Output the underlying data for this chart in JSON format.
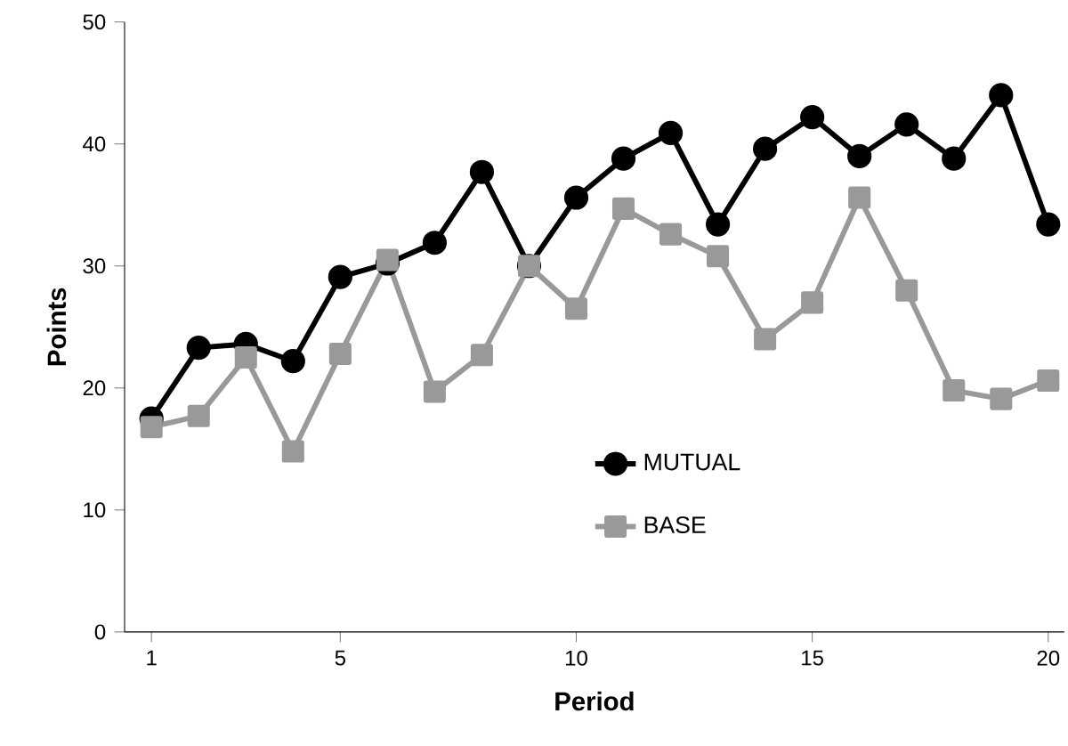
{
  "chart_data": {
    "type": "line",
    "xlabel": "Period",
    "ylabel": "Points",
    "x": [
      1,
      2,
      3,
      4,
      5,
      6,
      7,
      8,
      9,
      10,
      11,
      12,
      13,
      14,
      15,
      16,
      17,
      18,
      19,
      20
    ],
    "series": [
      {
        "name": "MUTUAL",
        "color": "#000000",
        "marker": "circle",
        "values": [
          17.5,
          23.3,
          23.6,
          22.2,
          29.1,
          30.2,
          31.9,
          37.7,
          30.0,
          35.6,
          38.8,
          40.9,
          33.4,
          39.6,
          42.2,
          39.0,
          41.6,
          38.8,
          44.0,
          33.4
        ]
      },
      {
        "name": "BASE",
        "color": "#999999",
        "marker": "square",
        "values": [
          16.8,
          17.7,
          22.5,
          14.8,
          22.8,
          30.5,
          19.7,
          22.7,
          30.0,
          26.5,
          34.7,
          32.6,
          30.8,
          24.0,
          27.0,
          35.6,
          28.0,
          19.8,
          19.1,
          20.6
        ]
      }
    ],
    "xlim": [
      0.43,
      20.34
    ],
    "ylim": [
      0,
      50
    ],
    "xticks": [
      1,
      5,
      10,
      15,
      20
    ],
    "yticks": [
      0,
      10,
      20,
      30,
      40,
      50
    ],
    "grid": false,
    "legend": "bottom",
    "line_style": "solid"
  }
}
